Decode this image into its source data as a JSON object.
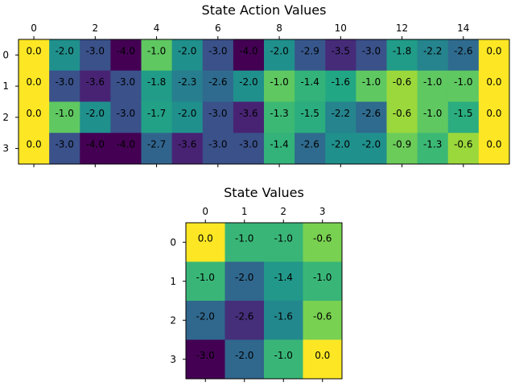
{
  "chart_data": [
    {
      "type": "heatmap",
      "title": "State Action Values",
      "colormap": "viridis",
      "x_ticks": [
        0,
        2,
        4,
        6,
        8,
        10,
        12,
        14
      ],
      "y_ticks": [
        0,
        1,
        2,
        3
      ],
      "x_tick_position": "top",
      "vmin": -4.0,
      "vmax": 0.0,
      "values": [
        [
          0.0,
          -2.0,
          -3.0,
          -4.0,
          -1.0,
          -2.0,
          -3.0,
          -4.0,
          -2.0,
          -2.9,
          -3.5,
          -3.0,
          -1.8,
          -2.2,
          -2.6,
          0.0
        ],
        [
          0.0,
          -3.0,
          -3.6,
          -3.0,
          -1.8,
          -2.3,
          -2.6,
          -2.0,
          -1.0,
          -1.4,
          -1.6,
          -1.0,
          -0.6,
          -1.0,
          -1.0,
          0.0
        ],
        [
          0.0,
          -1.0,
          -2.0,
          -3.0,
          -1.7,
          -2.0,
          -3.0,
          -3.6,
          -1.3,
          -1.5,
          -2.2,
          -2.6,
          -0.6,
          -1.0,
          -1.5,
          0.0
        ],
        [
          0.0,
          -3.0,
          -4.0,
          -4.0,
          -2.7,
          -3.6,
          -3.0,
          -3.0,
          -1.4,
          -2.6,
          -2.0,
          -2.0,
          -0.9,
          -1.3,
          -0.6,
          0.0
        ]
      ],
      "labels": [
        [
          "0.0",
          "-2.0",
          "-3.0",
          "-4.0",
          "-1.0",
          "-2.0",
          "-3.0",
          "-4.0",
          "-2.0",
          "-2.9",
          "-3.5",
          "-3.0",
          "-1.8",
          "-2.2",
          "-2.6",
          "0.0"
        ],
        [
          "0.0",
          "-3.0",
          "-3.6",
          "-3.0",
          "-1.8",
          "-2.3",
          "-2.6",
          "-2.0",
          "-1.0",
          "-1.4",
          "-1.6",
          "-1.0",
          "-0.6",
          "-1.0",
          "-1.0",
          "0.0"
        ],
        [
          "0.0",
          "-1.0",
          "-2.0",
          "-3.0",
          "-1.7",
          "-2.0",
          "-3.0",
          "-3.6",
          "-1.3",
          "-1.5",
          "-2.2",
          "-2.6",
          "-0.6",
          "-1.0",
          "-1.5",
          "0.0"
        ],
        [
          "0.0",
          "-3.0",
          "-4.0",
          "-4.0",
          "-2.7",
          "-3.6",
          "-3.0",
          "-3.0",
          "-1.4",
          "-2.6",
          "-2.0",
          "-2.0",
          "-0.9",
          "-1.3",
          "-0.6",
          "0.0"
        ]
      ]
    },
    {
      "type": "heatmap",
      "title": "State Values",
      "colormap": "viridis",
      "x_ticks": [
        0,
        1,
        2,
        3
      ],
      "y_ticks": [
        0,
        1,
        2,
        3
      ],
      "x_tick_position": "top",
      "vmin": -3.0,
      "vmax": 0.0,
      "values": [
        [
          0.0,
          -1.0,
          -1.0,
          -0.6
        ],
        [
          -1.0,
          -2.0,
          -1.4,
          -1.0
        ],
        [
          -2.0,
          -2.6,
          -1.6,
          -0.6
        ],
        [
          -3.0,
          -2.0,
          -1.0,
          0.0
        ]
      ],
      "labels": [
        [
          "0.0",
          "-1.0",
          "-1.0",
          "-0.6"
        ],
        [
          "-1.0",
          "-2.0",
          "-1.4",
          "-1.0"
        ],
        [
          "-2.0",
          "-2.6",
          "-1.6",
          "-0.6"
        ],
        [
          "-3.0",
          "-2.0",
          "-1.0",
          "0.0"
        ]
      ]
    }
  ]
}
